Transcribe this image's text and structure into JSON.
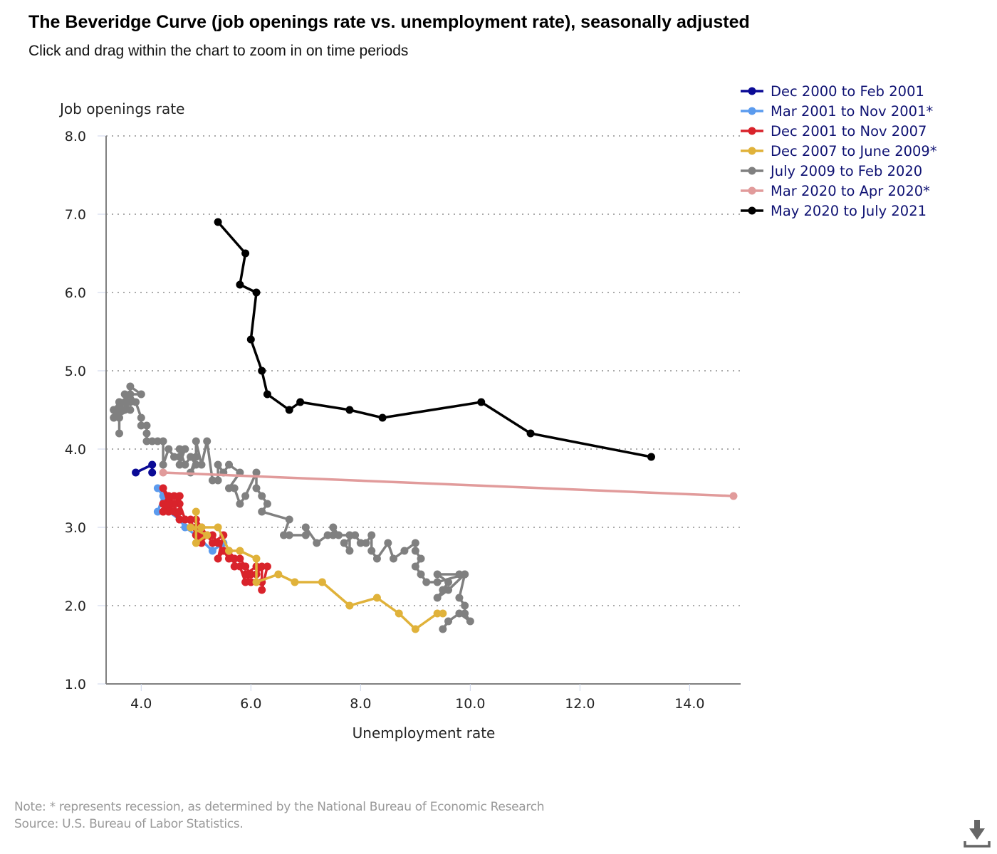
{
  "header": {
    "title": "The Beveridge Curve (job openings rate vs. unemployment rate), seasonally adjusted",
    "subtitle": "Click and drag within the chart to zoom in on time periods"
  },
  "footer": {
    "note": "Note: * represents recession, as determined by the National Bureau of Economic Research",
    "source": "Source: U.S. Bureau of Labor Statistics.",
    "download_icon": "download-icon"
  },
  "chart_data": {
    "type": "line",
    "title": "The Beveridge Curve (job openings rate vs. unemployment rate), seasonally adjusted",
    "xlabel": "Unemployment rate",
    "ylabel": "Job openings rate",
    "xlim": [
      3.36,
      14.93
    ],
    "ylim": [
      1.0,
      8.0
    ],
    "xticks": [
      "4.0",
      "6.0",
      "8.0",
      "10.0",
      "12.0",
      "14.0"
    ],
    "xtick_values": [
      4,
      6,
      8,
      10,
      12,
      14
    ],
    "yticks": [
      "1.0",
      "2.0",
      "3.0",
      "4.0",
      "5.0",
      "6.0",
      "7.0",
      "8.0"
    ],
    "ytick_values": [
      1,
      2,
      3,
      4,
      5,
      6,
      7,
      8
    ],
    "grid": "horizontal dotted",
    "legend_position": "top-right",
    "series": [
      {
        "name": "Dec 2000 to Feb 2001",
        "color": "#0b0b96",
        "points": [
          [
            3.9,
            3.7
          ],
          [
            4.2,
            3.8
          ],
          [
            4.2,
            3.7
          ]
        ]
      },
      {
        "name": "Mar 2001 to Nov 2001*",
        "color": "#5b9bee",
        "points": [
          [
            4.3,
            3.5
          ],
          [
            4.4,
            3.4
          ],
          [
            4.3,
            3.2
          ],
          [
            4.5,
            3.2
          ],
          [
            4.7,
            3.1
          ],
          [
            4.8,
            3.0
          ],
          [
            5.0,
            2.9
          ],
          [
            5.3,
            2.7
          ],
          [
            5.5,
            2.8
          ]
        ]
      },
      {
        "name": "Dec 2001 to Nov 2007",
        "color": "#d9232b",
        "points": [
          [
            5.7,
            2.6
          ],
          [
            5.7,
            2.5
          ],
          [
            5.9,
            2.5
          ],
          [
            6.0,
            2.4
          ],
          [
            5.9,
            2.3
          ],
          [
            5.8,
            2.5
          ],
          [
            5.6,
            2.6
          ],
          [
            5.5,
            2.7
          ],
          [
            5.4,
            2.6
          ],
          [
            5.5,
            2.9
          ],
          [
            5.3,
            2.8
          ],
          [
            5.2,
            2.9
          ],
          [
            5.0,
            3.1
          ],
          [
            5.1,
            3.0
          ],
          [
            5.2,
            2.9
          ],
          [
            5.1,
            2.8
          ],
          [
            5.0,
            2.9
          ],
          [
            4.9,
            3.1
          ],
          [
            4.8,
            3.1
          ],
          [
            4.7,
            3.3
          ],
          [
            4.6,
            3.3
          ],
          [
            4.7,
            3.4
          ],
          [
            4.6,
            3.4
          ],
          [
            4.5,
            3.3
          ],
          [
            4.4,
            3.2
          ],
          [
            4.4,
            3.3
          ],
          [
            4.5,
            3.2
          ],
          [
            4.6,
            3.2
          ],
          [
            4.7,
            3.1
          ],
          [
            4.6,
            3.3
          ],
          [
            4.4,
            3.5
          ],
          [
            4.5,
            3.3
          ],
          [
            4.6,
            3.2
          ],
          [
            4.7,
            3.2
          ],
          [
            4.7,
            3.4
          ],
          [
            4.6,
            3.3
          ],
          [
            4.4,
            3.2
          ],
          [
            4.5,
            3.3
          ],
          [
            4.5,
            3.4
          ],
          [
            4.4,
            3.3
          ],
          [
            4.7,
            3.1
          ],
          [
            4.8,
            3.1
          ],
          [
            5.0,
            3.0
          ],
          [
            5.1,
            2.9
          ],
          [
            5.3,
            2.9
          ],
          [
            5.4,
            2.8
          ],
          [
            5.5,
            2.7
          ],
          [
            5.6,
            2.7
          ],
          [
            5.7,
            2.6
          ],
          [
            5.8,
            2.6
          ],
          [
            5.9,
            2.5
          ],
          [
            6.0,
            2.4
          ],
          [
            6.1,
            2.4
          ],
          [
            6.2,
            2.5
          ],
          [
            6.2,
            2.3
          ],
          [
            6.0,
            2.3
          ],
          [
            5.9,
            2.4
          ],
          [
            6.1,
            2.5
          ],
          [
            6.3,
            2.5
          ],
          [
            6.2,
            2.2
          ]
        ]
      },
      {
        "name": "Dec 2007 to June 2009*",
        "color": "#e0b23a",
        "points": [
          [
            5.0,
            3.2
          ],
          [
            5.0,
            2.8
          ],
          [
            5.2,
            2.9
          ],
          [
            4.9,
            3.0
          ],
          [
            5.1,
            3.0
          ],
          [
            5.4,
            3.0
          ],
          [
            5.6,
            2.7
          ],
          [
            5.8,
            2.7
          ],
          [
            6.1,
            2.6
          ],
          [
            6.1,
            2.3
          ],
          [
            6.5,
            2.4
          ],
          [
            6.8,
            2.3
          ],
          [
            7.3,
            2.3
          ],
          [
            7.8,
            2.0
          ],
          [
            8.3,
            2.1
          ],
          [
            8.7,
            1.9
          ],
          [
            9.0,
            1.7
          ],
          [
            9.4,
            1.9
          ],
          [
            9.5,
            1.9
          ]
        ]
      },
      {
        "name": "July 2009 to Feb 2020",
        "color": "#808080",
        "points": [
          [
            9.5,
            1.7
          ],
          [
            9.6,
            1.8
          ],
          [
            9.8,
            1.9
          ],
          [
            10.0,
            1.8
          ],
          [
            9.9,
            1.9
          ],
          [
            9.9,
            2.0
          ],
          [
            9.8,
            2.1
          ],
          [
            9.9,
            2.4
          ],
          [
            9.8,
            2.4
          ],
          [
            9.4,
            2.4
          ],
          [
            9.6,
            2.3
          ],
          [
            9.5,
            2.2
          ],
          [
            9.4,
            2.1
          ],
          [
            9.6,
            2.2
          ],
          [
            9.9,
            2.4
          ],
          [
            9.4,
            2.3
          ],
          [
            9.2,
            2.3
          ],
          [
            9.1,
            2.4
          ],
          [
            9.0,
            2.5
          ],
          [
            9.1,
            2.6
          ],
          [
            9.0,
            2.7
          ],
          [
            9.0,
            2.8
          ],
          [
            8.8,
            2.7
          ],
          [
            8.6,
            2.6
          ],
          [
            8.5,
            2.8
          ],
          [
            8.3,
            2.6
          ],
          [
            8.2,
            2.7
          ],
          [
            8.2,
            2.9
          ],
          [
            8.1,
            2.8
          ],
          [
            8.0,
            2.8
          ],
          [
            7.9,
            2.9
          ],
          [
            7.7,
            2.8
          ],
          [
            7.8,
            2.7
          ],
          [
            7.8,
            2.9
          ],
          [
            7.6,
            2.9
          ],
          [
            7.5,
            3.0
          ],
          [
            7.5,
            2.9
          ],
          [
            7.4,
            2.9
          ],
          [
            7.2,
            2.8
          ],
          [
            7.0,
            3.0
          ],
          [
            7.0,
            2.9
          ],
          [
            6.7,
            2.9
          ],
          [
            6.6,
            2.9
          ],
          [
            6.7,
            3.1
          ],
          [
            6.2,
            3.2
          ],
          [
            6.3,
            3.3
          ],
          [
            6.2,
            3.4
          ],
          [
            6.1,
            3.5
          ],
          [
            6.1,
            3.7
          ],
          [
            5.9,
            3.4
          ],
          [
            5.8,
            3.3
          ],
          [
            5.7,
            3.5
          ],
          [
            5.6,
            3.5
          ],
          [
            5.8,
            3.7
          ],
          [
            5.6,
            3.8
          ],
          [
            5.5,
            3.7
          ],
          [
            5.4,
            3.8
          ],
          [
            5.4,
            3.6
          ],
          [
            5.3,
            3.6
          ],
          [
            5.2,
            4.1
          ],
          [
            5.1,
            3.8
          ],
          [
            5.0,
            4.1
          ],
          [
            5.0,
            3.9
          ],
          [
            4.9,
            3.7
          ],
          [
            5.0,
            3.8
          ],
          [
            4.9,
            3.9
          ],
          [
            4.8,
            3.8
          ],
          [
            4.7,
            4.0
          ],
          [
            4.7,
            3.8
          ],
          [
            4.8,
            4.0
          ],
          [
            4.7,
            3.9
          ],
          [
            4.6,
            3.9
          ],
          [
            4.5,
            4.0
          ],
          [
            4.4,
            3.8
          ],
          [
            4.4,
            4.1
          ],
          [
            4.3,
            4.1
          ],
          [
            4.2,
            4.1
          ],
          [
            4.1,
            4.1
          ],
          [
            4.1,
            4.2
          ],
          [
            4.1,
            4.3
          ],
          [
            4.0,
            4.3
          ],
          [
            4.0,
            4.4
          ],
          [
            3.9,
            4.6
          ],
          [
            3.8,
            4.7
          ],
          [
            4.0,
            4.7
          ],
          [
            3.8,
            4.8
          ],
          [
            3.8,
            4.6
          ],
          [
            3.7,
            4.7
          ],
          [
            3.7,
            4.5
          ],
          [
            3.6,
            4.6
          ],
          [
            3.5,
            4.5
          ],
          [
            3.5,
            4.4
          ],
          [
            3.6,
            4.5
          ],
          [
            3.6,
            4.2
          ],
          [
            3.6,
            4.4
          ],
          [
            3.5,
            4.5
          ],
          [
            3.7,
            4.6
          ],
          [
            3.8,
            4.5
          ],
          [
            3.5,
            4.4
          ],
          [
            3.6,
            4.6
          ],
          [
            3.5,
            4.5
          ]
        ]
      },
      {
        "name": "Mar 2020 to Apr 2020*",
        "color": "#e19b9b",
        "points": [
          [
            4.4,
            3.7
          ],
          [
            14.8,
            3.4
          ]
        ]
      },
      {
        "name": "May 2020 to July 2021",
        "color": "#000000",
        "points": [
          [
            13.3,
            3.9
          ],
          [
            11.1,
            4.2
          ],
          [
            10.2,
            4.6
          ],
          [
            8.4,
            4.4
          ],
          [
            7.8,
            4.5
          ],
          [
            6.9,
            4.6
          ],
          [
            6.7,
            4.5
          ],
          [
            6.3,
            4.7
          ],
          [
            6.2,
            5.0
          ],
          [
            6.0,
            5.4
          ],
          [
            6.1,
            6.0
          ],
          [
            5.8,
            6.1
          ],
          [
            5.9,
            6.5
          ],
          [
            5.4,
            6.9
          ]
        ]
      }
    ]
  }
}
